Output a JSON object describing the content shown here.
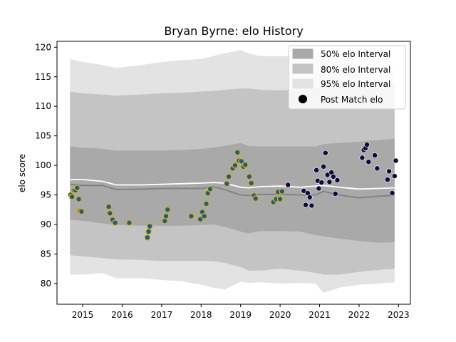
{
  "chart_data": {
    "type": "line",
    "title": "Bryan Byrne: elo History",
    "xlabel": "",
    "ylabel": "elo score",
    "xlim": [
      2014.35,
      2023.3
    ],
    "ylim": [
      76.5,
      121
    ],
    "x_ticks": [
      2015,
      2016,
      2017,
      2018,
      2019,
      2020,
      2021,
      2022,
      2023
    ],
    "y_ticks": [
      80,
      85,
      90,
      95,
      100,
      105,
      110,
      115,
      120
    ],
    "grid": false,
    "legend_position": "upper right",
    "legend": [
      {
        "label": "50% elo Interval",
        "kind": "band"
      },
      {
        "label": "80% elo Interval",
        "kind": "band"
      },
      {
        "label": "95% elo Interval",
        "kind": "band"
      },
      {
        "label": "Post Match elo",
        "kind": "marker"
      }
    ],
    "colors": {
      "band50": "#a9a9a9",
      "band80": "#c4c4c4",
      "band95": "#e3e3e3",
      "median_line": "#808080",
      "mean_line": "#ffffff",
      "point_yellow_edge": "#d4b11f",
      "point_yellow_face": "#1f5c8a",
      "point_navy": "#0c0c3c"
    },
    "bands": {
      "x": [
        2014.68,
        2015.0,
        2015.5,
        2015.85,
        2016.5,
        2017.0,
        2017.5,
        2018.0,
        2018.3,
        2018.6,
        2019.0,
        2019.2,
        2019.5,
        2020.0,
        2020.5,
        2020.9,
        2021.1,
        2021.5,
        2022.0,
        2022.5,
        2022.9
      ],
      "p95_upper": [
        118,
        117.5,
        117,
        116.5,
        117,
        117.5,
        117.8,
        118,
        118.5,
        119,
        119.5,
        119,
        118.5,
        118.5,
        118.5,
        118.5,
        119,
        118.5,
        117,
        115.8,
        116
      ],
      "p80_upper": [
        112.5,
        112.2,
        112,
        111.8,
        112,
        112.2,
        112.3,
        112.5,
        112.6,
        112.8,
        113,
        113,
        112.8,
        112.7,
        112.8,
        113,
        113.5,
        113.5,
        113.5,
        113.5,
        113.8
      ],
      "p50_upper": [
        103.2,
        103,
        102.8,
        102.5,
        102.5,
        102.5,
        102.6,
        102.8,
        103,
        103.3,
        103.8,
        103.3,
        103.2,
        103.2,
        103.2,
        103.2,
        103.6,
        103.8,
        104,
        104.3,
        104.5
      ],
      "p50_lower": [
        90.8,
        90.6,
        90.2,
        89.9,
        89.8,
        89.8,
        89.8,
        89.9,
        90,
        89.6,
        88.8,
        88.5,
        88.9,
        88.9,
        88.8,
        88.2,
        88,
        87.6,
        87.2,
        86.9,
        87
      ],
      "p80_lower": [
        84.8,
        84.6,
        84.3,
        84.1,
        84,
        83.8,
        83.8,
        83.8,
        83.8,
        83.5,
        82.8,
        82.2,
        82.2,
        82.5,
        82.2,
        81.8,
        81.5,
        81.5,
        82,
        82.3,
        82.5
      ],
      "p95_lower": [
        81.5,
        81.5,
        81.8,
        80.9,
        80.9,
        80.6,
        80.4,
        79.8,
        79.3,
        79.0,
        80.3,
        80.1,
        80.2,
        80.0,
        80.1,
        80.0,
        78.4,
        79.3,
        79.8,
        80.0,
        80.2
      ],
      "median": [
        96.8,
        96.6,
        96.6,
        95.9,
        96.0,
        96.1,
        96.1,
        96.1,
        96.4,
        95.9,
        95.0,
        94.9,
        95.1,
        95.1,
        95.0,
        95.0,
        95.6,
        95.0,
        94.5,
        94.8,
        94.9
      ],
      "mean": [
        97.6,
        97.6,
        97.3,
        96.7,
        96.7,
        96.8,
        96.9,
        97.0,
        97.1,
        97.0,
        96.3,
        96.2,
        96.4,
        96.5,
        96.3,
        96.5,
        96.6,
        96.3,
        96.0,
        96.1,
        96.2
      ]
    },
    "points_yellow": [
      [
        2014.7,
        95.0
      ],
      [
        2014.73,
        94.7
      ],
      [
        2014.78,
        95.8
      ],
      [
        2014.82,
        95.8
      ],
      [
        2014.86,
        96.2
      ],
      [
        2014.9,
        94.3
      ],
      [
        2014.93,
        92.3
      ],
      [
        2014.97,
        92.2
      ],
      [
        2015.66,
        93.0
      ],
      [
        2015.69,
        91.9
      ],
      [
        2015.76,
        90.8
      ],
      [
        2015.82,
        90.3
      ],
      [
        2016.18,
        90.3
      ],
      [
        2016.64,
        87.8
      ],
      [
        2016.67,
        88.8
      ],
      [
        2016.7,
        89.7
      ],
      [
        2017.08,
        90.6
      ],
      [
        2017.11,
        91.4
      ],
      [
        2017.15,
        92.5
      ],
      [
        2017.75,
        91.4
      ],
      [
        2017.98,
        90.9
      ],
      [
        2018.03,
        92.1
      ],
      [
        2018.08,
        91.4
      ],
      [
        2018.13,
        93.5
      ],
      [
        2018.17,
        95.3
      ],
      [
        2018.23,
        96.0
      ],
      [
        2018.65,
        96.9
      ],
      [
        2018.7,
        98.1
      ],
      [
        2018.8,
        99.5
      ],
      [
        2018.86,
        100.0
      ],
      [
        2018.92,
        102.2
      ],
      [
        2018.96,
        100.8
      ],
      [
        2019.02,
        100.7
      ],
      [
        2019.07,
        99.8
      ],
      [
        2019.12,
        100.1
      ],
      [
        2019.22,
        98.1
      ],
      [
        2019.27,
        97.0
      ],
      [
        2019.34,
        94.9
      ],
      [
        2019.38,
        94.4
      ],
      [
        2019.83,
        93.8
      ],
      [
        2019.9,
        94.3
      ],
      [
        2019.95,
        95.5
      ],
      [
        2020.0,
        94.3
      ],
      [
        2020.05,
        95.6
      ]
    ],
    "points_navy": [
      [
        2020.2,
        96.7
      ],
      [
        2020.6,
        95.7
      ],
      [
        2020.65,
        93.3
      ],
      [
        2020.7,
        95.3
      ],
      [
        2020.75,
        94.6
      ],
      [
        2020.8,
        93.2
      ],
      [
        2020.92,
        99.2
      ],
      [
        2020.95,
        97.4
      ],
      [
        2020.98,
        96.1
      ],
      [
        2021.05,
        97.1
      ],
      [
        2021.1,
        99.8
      ],
      [
        2021.15,
        102.1
      ],
      [
        2021.2,
        98.4
      ],
      [
        2021.25,
        97.2
      ],
      [
        2021.3,
        98.8
      ],
      [
        2021.35,
        98.1
      ],
      [
        2021.4,
        95.2
      ],
      [
        2021.45,
        97.5
      ],
      [
        2022.08,
        101.3
      ],
      [
        2022.12,
        102.6
      ],
      [
        2022.16,
        102.9
      ],
      [
        2022.2,
        103.5
      ],
      [
        2022.24,
        100.6
      ],
      [
        2022.4,
        101.7
      ],
      [
        2022.46,
        99.5
      ],
      [
        2022.72,
        97.6
      ],
      [
        2022.76,
        99.0
      ],
      [
        2022.84,
        95.3
      ],
      [
        2022.9,
        98.2
      ],
      [
        2022.93,
        100.8
      ]
    ]
  }
}
